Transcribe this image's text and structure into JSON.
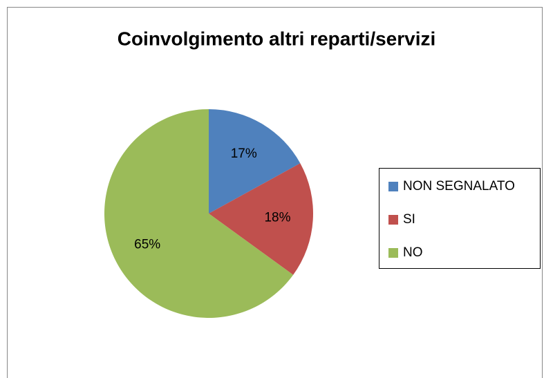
{
  "chart_data": {
    "type": "pie",
    "title": "Coinvolgimento altri reparti/servizi",
    "categories": [
      "NON SEGNALATO",
      "SI",
      "NO"
    ],
    "values": [
      17,
      18,
      65
    ],
    "value_labels": [
      "17%",
      "18%",
      "65%"
    ],
    "colors": [
      "#4f81bd",
      "#c0504d",
      "#9bbb59"
    ],
    "legend": "right"
  }
}
